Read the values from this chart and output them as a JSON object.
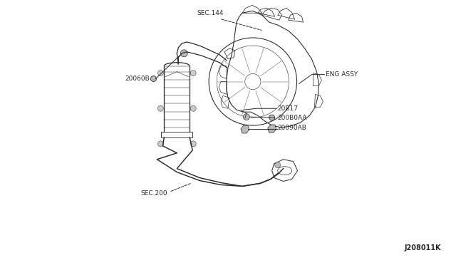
{
  "background_color": "#ffffff",
  "fig_width": 6.4,
  "fig_height": 3.72,
  "dpi": 100,
  "labels": {
    "SEC144": "SEC.144",
    "ENG_ASSY": "ENG ASSY",
    "20060B": "20060B",
    "20617": "20B17",
    "200B0AA": "200B0AA",
    "20090AB": "20090AB",
    "SEC200": "SEC.200",
    "J208011K": "J208011K"
  },
  "line_color": "#2a2a2a",
  "text_color": "#2a2a2a",
  "font_size": 6.5
}
